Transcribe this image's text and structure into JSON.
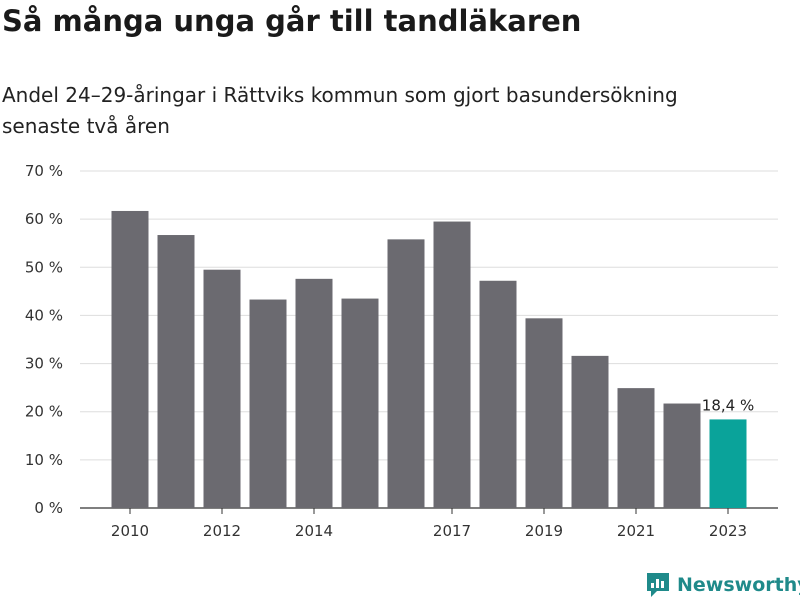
{
  "header": {
    "title": "Så många unga går till tandläkaren",
    "subtitle": "Andel 24–29-åringar i Rättviks kommun som gjort basundersökning senaste två åren"
  },
  "brand": {
    "name": "Newsworthy",
    "color": "#1f8a8a",
    "icon": "newsworthy-logo-icon"
  },
  "colors": {
    "bar": "#6b6a70",
    "highlight": "#0aa39a",
    "grid": "#dddddd",
    "axis": "#333333"
  },
  "chart_data": {
    "type": "bar",
    "x": [
      2010,
      2011,
      2012,
      2013,
      2014,
      2015,
      2016,
      2017,
      2018,
      2019,
      2020,
      2021,
      2022,
      2023
    ],
    "values": [
      61.7,
      56.7,
      49.5,
      43.3,
      47.6,
      43.5,
      55.8,
      59.5,
      47.2,
      39.4,
      31.6,
      24.9,
      21.7,
      18.4
    ],
    "x_tick_labels": [
      {
        "index": 0,
        "label": "2010"
      },
      {
        "index": 2,
        "label": "2012"
      },
      {
        "index": 4,
        "label": "2014"
      },
      {
        "index": 7,
        "label": "2017"
      },
      {
        "index": 9,
        "label": "2019"
      },
      {
        "index": 11,
        "label": "2021"
      },
      {
        "index": 13,
        "label": "2023"
      }
    ],
    "y_ticks": [
      0,
      10,
      20,
      30,
      40,
      50,
      60,
      70
    ],
    "y_tick_labels": [
      "0 %",
      "10 %",
      "20 %",
      "30 %",
      "40 %",
      "50 %",
      "60 %",
      "70 %"
    ],
    "ylim": [
      0,
      70
    ],
    "highlight_index": 13,
    "highlight_label": "18,4 %",
    "grid": true
  }
}
